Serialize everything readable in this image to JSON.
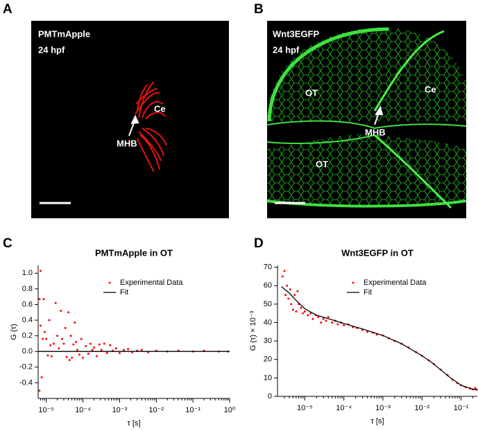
{
  "panels": [
    {
      "letter": "A",
      "labels": [
        "PMTmApple",
        "24 hpf"
      ],
      "annotations": [
        "Ce",
        "MHB"
      ]
    },
    {
      "letter": "B",
      "labels": [
        "Wnt3EGFP",
        "24 hpf"
      ],
      "annotations": [
        "OT",
        "Ce",
        "MHB",
        "OT"
      ]
    }
  ],
  "chart_data": [
    {
      "type": "scatter",
      "panel_label": "C",
      "title": "PMTmApple in OT",
      "xlabel": "τ [s]",
      "ylabel": "G (τ)",
      "xscale": "log",
      "xlim": [
        6e-06,
        1
      ],
      "ylim": [
        -0.6,
        1.1
      ],
      "xticks": [
        {
          "value": 1e-05,
          "label": "10⁻⁵"
        },
        {
          "value": 0.0001,
          "label": "10⁻⁴"
        },
        {
          "value": 0.001,
          "label": "10⁻³"
        },
        {
          "value": 0.01,
          "label": "10⁻²"
        },
        {
          "value": 0.1,
          "label": "10⁻¹"
        },
        {
          "value": 1,
          "label": "10⁰"
        }
      ],
      "yticks": [
        -0.4,
        -0.2,
        {
          "value": 0,
          "label": "0.0"
        },
        0.2,
        0.4,
        0.6,
        0.8,
        {
          "value": 1,
          "label": "1.0"
        }
      ],
      "legend": "upper center",
      "series": [
        {
          "name": "Experimental Data",
          "color": "#ff0000",
          "style": "points",
          "x": [
            6.5e-06,
            6.5e-06,
            7e-06,
            7e-06,
            7.5e-06,
            8e-06,
            8.5e-06,
            9e-06,
            1e-05,
            1.1e-05,
            1.2e-05,
            1.3e-05,
            1.4e-05,
            1.6e-05,
            1.8e-05,
            2e-05,
            2.2e-05,
            2.5e-05,
            2.7e-05,
            3e-05,
            3.3e-05,
            3.6e-05,
            4e-05,
            4.3e-05,
            4.7e-05,
            5e-05,
            5.5e-05,
            6e-05,
            6.5e-05,
            7e-05,
            8e-05,
            9e-05,
            0.0001,
            0.00012,
            0.00014,
            0.00016,
            0.00018,
            0.0002,
            0.00024,
            0.00028,
            0.00032,
            0.00038,
            0.00045,
            0.00055,
            0.00065,
            0.0008,
            0.001,
            0.0013,
            0.0017,
            0.0022,
            0.003,
            0.004,
            0.006,
            0.01,
            0.02,
            0.04,
            0.1,
            0.2,
            0.5,
            0.9
          ],
          "values": [
            0.67,
            -0.5,
            1.03,
            0.33,
            -0.33,
            0.16,
            0.67,
            0.25,
            0.16,
            -0.05,
            0.4,
            0.08,
            -0.06,
            0.1,
            0.62,
            0.2,
            0.04,
            0.52,
            0.16,
            0.1,
            0.3,
            -0.07,
            0.5,
            -0.11,
            0.2,
            -0.08,
            0.09,
            0.37,
            0.12,
            0.02,
            -0.04,
            0.16,
            -0.08,
            0.07,
            -0.03,
            0.1,
            0.02,
            0.05,
            -0.06,
            0.09,
            0.02,
            0.1,
            -0.02,
            0.08,
            0.01,
            0.04,
            -0.02,
            0.02,
            0.03,
            -0.01,
            0.01,
            0.02,
            -0.01,
            0.01,
            0,
            0.01,
            0,
            0.01,
            0,
            0
          ]
        },
        {
          "name": "Fit",
          "color": "#000000",
          "style": "line",
          "x": [
            6e-06,
            1
          ],
          "values": [
            0,
            0
          ]
        }
      ]
    },
    {
      "type": "scatter",
      "panel_label": "D",
      "title": "Wnt3EGFP in OT",
      "xlabel": "τ [s]",
      "ylabel": "G (τ) × 10⁻³",
      "xscale": "log",
      "xlim": [
        2e-06,
        0.26
      ],
      "ylim": [
        0,
        71
      ],
      "xticks": [
        {
          "value": 1e-05,
          "label": "10⁻⁵"
        },
        {
          "value": 0.0001,
          "label": "10⁻⁴"
        },
        {
          "value": 0.001,
          "label": "10⁻³"
        },
        {
          "value": 0.01,
          "label": "10⁻²"
        },
        {
          "value": 0.1,
          "label": "10⁻¹"
        }
      ],
      "yticks": [
        0,
        10,
        20,
        30,
        40,
        50,
        60,
        70
      ],
      "legend": "upper center",
      "series": [
        {
          "name": "Experimental Data",
          "color": "#ff0000",
          "style": "points",
          "x": [
            2.7e-06,
            3e-06,
            3.2e-06,
            3.5e-06,
            3.8e-06,
            4.2e-06,
            4.5e-06,
            5e-06,
            5.5e-06,
            6e-06,
            6.5e-06,
            7e-06,
            8e-06,
            9e-06,
            1e-05,
            1.2e-05,
            1.4e-05,
            1.6e-05,
            1.9e-05,
            2.2e-05,
            2.6e-05,
            3e-05,
            3.5e-05,
            4e-05,
            5e-05,
            6e-05,
            7e-05,
            8.5e-05,
            0.0001,
            0.00013,
            0.00017,
            0.00022,
            0.0003,
            0.0004,
            0.00055,
            0.0007,
            0.001,
            0.0014,
            0.002,
            0.003,
            0.0045,
            0.007,
            0.01,
            0.015,
            0.02,
            0.03,
            0.045,
            0.06,
            0.08,
            0.1,
            0.13,
            0.17,
            0.2,
            0.23,
            0.25
          ],
          "values": [
            65,
            68,
            55,
            60,
            53,
            58,
            50,
            47,
            55,
            46,
            57,
            50,
            48,
            45,
            46,
            44,
            45,
            42,
            44,
            43,
            40,
            42,
            41,
            43,
            40,
            41,
            39,
            40,
            38.5,
            39,
            37.5,
            37,
            36,
            35,
            34.5,
            33.5,
            33,
            31.5,
            30,
            28.5,
            26.5,
            24,
            22,
            19.5,
            17.5,
            14.5,
            11.5,
            9,
            7.3,
            6,
            5,
            4.3,
            3.8,
            4.5,
            3.6
          ]
        },
        {
          "name": "Fit",
          "color": "#000000",
          "style": "line",
          "x": [
            2.5e-06,
            4e-06,
            6e-06,
            1e-05,
            2e-05,
            5e-05,
            0.0001,
            0.0003,
            0.001,
            0.003,
            0.01,
            0.02,
            0.05,
            0.1,
            0.2,
            0.26
          ],
          "values": [
            59.5,
            56,
            52,
            47.5,
            44,
            41.5,
            39.5,
            36.5,
            33,
            28.5,
            22,
            17.5,
            10.5,
            6,
            3.8,
            3.5
          ]
        }
      ]
    }
  ]
}
